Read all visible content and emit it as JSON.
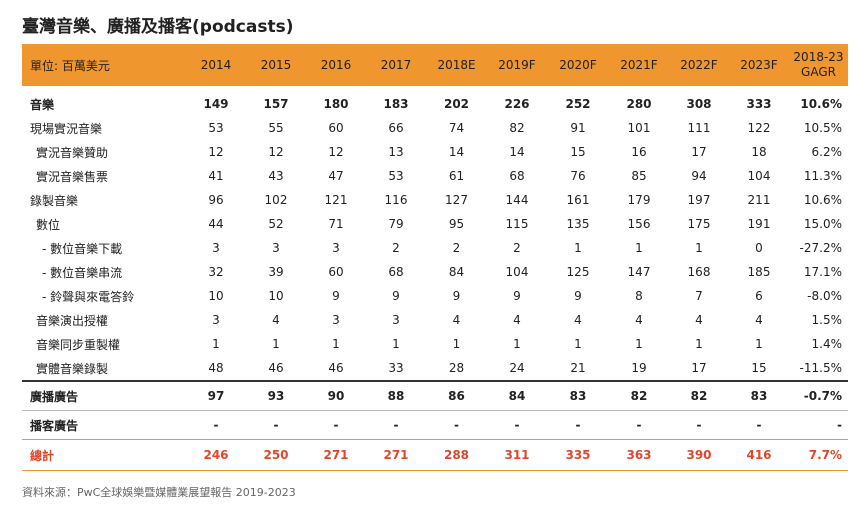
{
  "title": "臺灣音樂、廣播及播客(podcasts)",
  "header": {
    "unit": "單位: 百萬美元",
    "years": [
      "2014",
      "2015",
      "2016",
      "2017",
      "2018E",
      "2019F",
      "2020F",
      "2021F",
      "2022F",
      "2023F"
    ],
    "gagr_line1": "2018-23",
    "gagr_line2": "GAGR"
  },
  "rows": [
    {
      "label": "音樂",
      "values": [
        "149",
        "157",
        "180",
        "183",
        "202",
        "226",
        "252",
        "280",
        "308",
        "333"
      ],
      "gagr": "10.6%"
    },
    {
      "label": "現場實況音樂",
      "values": [
        "53",
        "55",
        "60",
        "66",
        "74",
        "82",
        "91",
        "101",
        "111",
        "122"
      ],
      "gagr": "10.5%"
    },
    {
      "label": "實況音樂贊助",
      "values": [
        "12",
        "12",
        "12",
        "13",
        "14",
        "14",
        "15",
        "16",
        "17",
        "18"
      ],
      "gagr": "6.2%"
    },
    {
      "label": "實況音樂售票",
      "values": [
        "41",
        "43",
        "47",
        "53",
        "61",
        "68",
        "76",
        "85",
        "94",
        "104"
      ],
      "gagr": "11.3%"
    },
    {
      "label": "錄製音樂",
      "values": [
        "96",
        "102",
        "121",
        "116",
        "127",
        "144",
        "161",
        "179",
        "197",
        "211"
      ],
      "gagr": "10.6%"
    },
    {
      "label": "數位",
      "values": [
        "44",
        "52",
        "71",
        "79",
        "95",
        "115",
        "135",
        "156",
        "175",
        "191"
      ],
      "gagr": "15.0%"
    },
    {
      "label": "- 數位音樂下載",
      "values": [
        "3",
        "3",
        "3",
        "2",
        "2",
        "2",
        "1",
        "1",
        "1",
        "0"
      ],
      "gagr": "-27.2%"
    },
    {
      "label": "- 數位音樂串流",
      "values": [
        "32",
        "39",
        "60",
        "68",
        "84",
        "104",
        "125",
        "147",
        "168",
        "185"
      ],
      "gagr": "17.1%"
    },
    {
      "label": "- 鈴聲與來電答鈴",
      "values": [
        "10",
        "10",
        "9",
        "9",
        "9",
        "9",
        "9",
        "8",
        "7",
        "6"
      ],
      "gagr": "-8.0%"
    },
    {
      "label": "音樂演出授權",
      "values": [
        "3",
        "4",
        "3",
        "3",
        "4",
        "4",
        "4",
        "4",
        "4",
        "4"
      ],
      "gagr": "1.5%"
    },
    {
      "label": "音樂同步重製權",
      "values": [
        "1",
        "1",
        "1",
        "1",
        "1",
        "1",
        "1",
        "1",
        "1",
        "1"
      ],
      "gagr": "1.4%"
    },
    {
      "label": "實體音樂錄製",
      "values": [
        "48",
        "46",
        "46",
        "33",
        "28",
        "24",
        "21",
        "19",
        "17",
        "15"
      ],
      "gagr": "-11.5%"
    },
    {
      "label": "廣播廣告",
      "values": [
        "97",
        "93",
        "90",
        "88",
        "86",
        "84",
        "83",
        "82",
        "82",
        "83"
      ],
      "gagr": "-0.7%"
    },
    {
      "label": "播客廣告",
      "values": [
        "-",
        "-",
        "-",
        "-",
        "-",
        "-",
        "-",
        "-",
        "-",
        "-"
      ],
      "gagr": "-"
    },
    {
      "label": "總計",
      "values": [
        "246",
        "250",
        "271",
        "271",
        "288",
        "311",
        "335",
        "363",
        "390",
        "416"
      ],
      "gagr": "7.7%"
    }
  ],
  "source": "資料來源：PwC全球娛樂暨媒體業展望報告 2019-2023",
  "colors": {
    "header_bg": "#f0962f",
    "total_text": "#e0472a"
  }
}
